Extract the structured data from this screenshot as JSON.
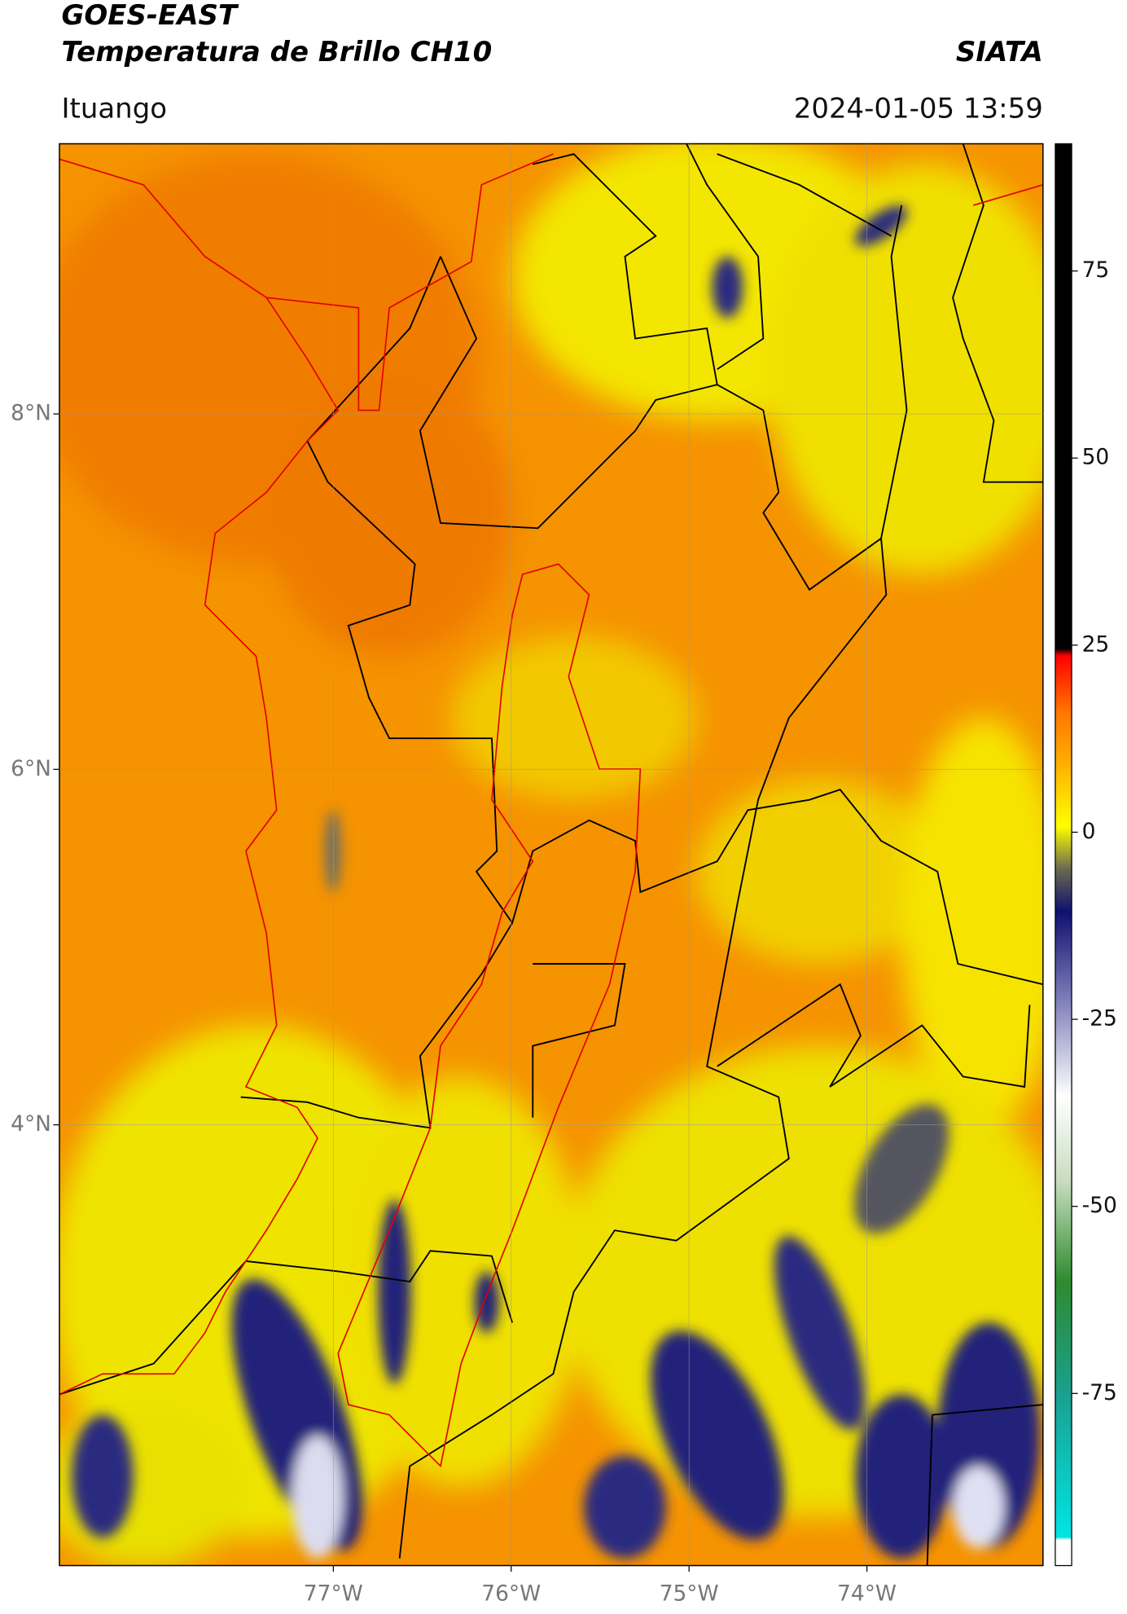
{
  "header": {
    "title": "GOES-EAST",
    "subtitle": "Temperatura de Brillo CH10",
    "organization": "SIATA",
    "region": "Ituango",
    "timestamp": "2024-01-05 13:59"
  },
  "map": {
    "xlim": [
      -78.54,
      -73.01
    ],
    "ylim": [
      1.52,
      9.52
    ],
    "xticks": [
      {
        "value": -77,
        "label": "77°W"
      },
      {
        "value": -76,
        "label": "76°W"
      },
      {
        "value": -75,
        "label": "75°W"
      },
      {
        "value": -74,
        "label": "74°W"
      }
    ],
    "yticks": [
      {
        "value": 4,
        "label": "4°N"
      },
      {
        "value": 6,
        "label": "6°N"
      },
      {
        "value": 8,
        "label": "8°N"
      }
    ],
    "grid": true
  },
  "colorbar": {
    "lim": [
      -98,
      92
    ],
    "ticks": [
      -75,
      -50,
      -25,
      0,
      25,
      50,
      75
    ]
  }
}
